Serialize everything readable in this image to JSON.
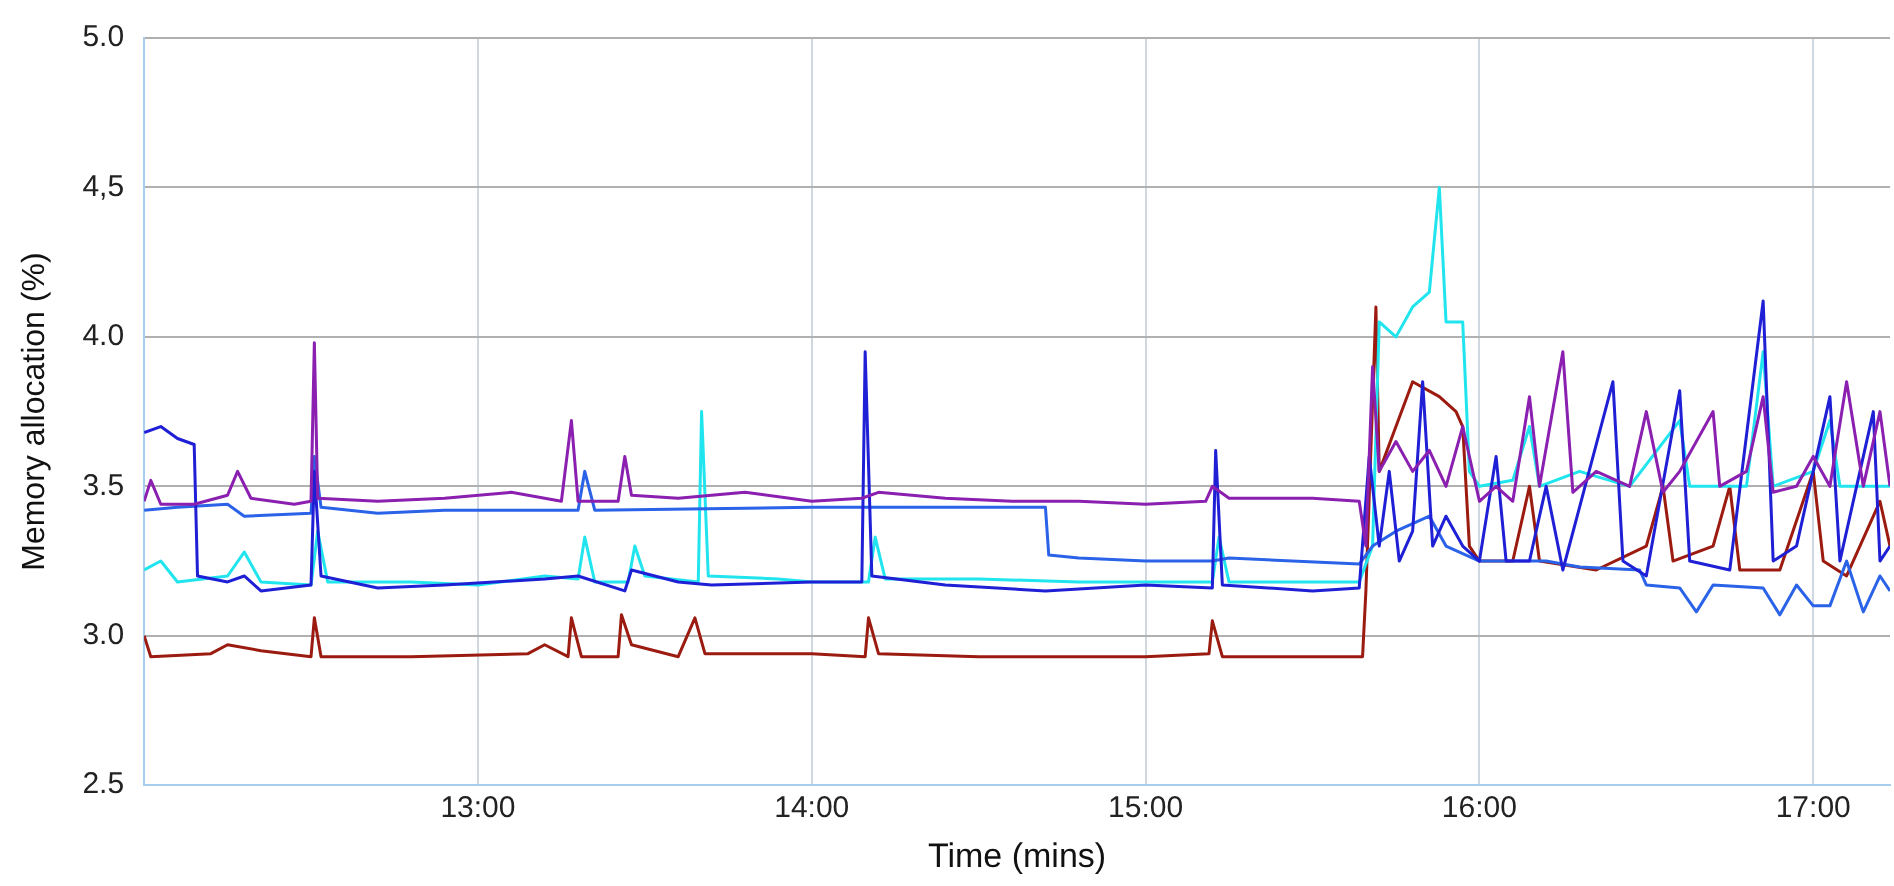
{
  "chart_data": {
    "type": "line",
    "xlabel": "Time (mins)",
    "ylabel": "Memory allocation (%)",
    "xlim": [
      12,
      17.23
    ],
    "xticks": [
      {
        "value": 13,
        "label": "13:00"
      },
      {
        "value": 14,
        "label": "14:00"
      },
      {
        "value": 15,
        "label": "15:00"
      },
      {
        "value": 16,
        "label": "16:00"
      },
      {
        "value": 17,
        "label": "17:00"
      }
    ],
    "ylim": [
      2.5,
      5
    ],
    "yticks": [
      2.5,
      {
        "value": 3,
        "label": "3.0"
      },
      3.5,
      {
        "value": 4,
        "label": "4.0"
      },
      {
        "value": 4.5,
        "label": "4,5"
      },
      {
        "value": 5,
        "label": "5.0"
      }
    ],
    "grid": true,
    "legend": false,
    "marker": "none",
    "line_style": "solid",
    "series": [
      {
        "color": "#8a1fb0",
        "x": [
          12.0,
          12.02,
          12.05,
          12.15,
          12.25,
          12.28,
          12.32,
          12.45,
          12.5,
          12.51,
          12.52,
          12.7,
          12.9,
          13.1,
          13.25,
          13.28,
          13.3,
          13.42,
          13.44,
          13.46,
          13.6,
          13.8,
          14.0,
          14.15,
          14.2,
          14.4,
          14.6,
          14.8,
          15.0,
          15.18,
          15.2,
          15.25,
          15.5,
          15.64,
          15.66,
          15.68,
          15.7,
          15.75,
          15.8,
          15.85,
          15.9,
          15.95,
          16.0,
          16.05,
          16.1,
          16.15,
          16.18,
          16.25,
          16.28,
          16.35,
          16.45,
          16.5,
          16.55,
          16.6,
          16.7,
          16.72,
          16.8,
          16.85,
          16.88,
          16.95,
          17.0,
          17.05,
          17.1,
          17.15,
          17.2,
          17.23
        ],
        "values": [
          3.45,
          3.52,
          3.44,
          3.44,
          3.47,
          3.55,
          3.46,
          3.44,
          3.45,
          3.98,
          3.46,
          3.45,
          3.46,
          3.48,
          3.45,
          3.72,
          3.45,
          3.45,
          3.6,
          3.47,
          3.46,
          3.48,
          3.45,
          3.46,
          3.48,
          3.46,
          3.45,
          3.45,
          3.44,
          3.45,
          3.5,
          3.46,
          3.46,
          3.45,
          3.3,
          3.9,
          3.55,
          3.65,
          3.55,
          3.62,
          3.5,
          3.7,
          3.45,
          3.5,
          3.45,
          3.8,
          3.5,
          3.95,
          3.48,
          3.55,
          3.5,
          3.75,
          3.48,
          3.55,
          3.75,
          3.5,
          3.55,
          3.8,
          3.48,
          3.5,
          3.6,
          3.5,
          3.85,
          3.5,
          3.75,
          3.5
        ]
      },
      {
        "color": "#1f1fd6",
        "x": [
          12.0,
          12.05,
          12.1,
          12.15,
          12.16,
          12.25,
          12.3,
          12.35,
          12.5,
          12.51,
          12.53,
          12.7,
          12.9,
          13.2,
          13.3,
          13.44,
          13.46,
          13.6,
          13.7,
          14.0,
          14.15,
          14.16,
          14.18,
          14.4,
          14.7,
          15.0,
          15.2,
          15.21,
          15.23,
          15.5,
          15.64,
          15.67,
          15.7,
          15.73,
          15.76,
          15.8,
          15.83,
          15.86,
          15.9,
          15.95,
          16.0,
          16.05,
          16.08,
          16.15,
          16.2,
          16.25,
          16.4,
          16.43,
          16.5,
          16.6,
          16.63,
          16.75,
          16.85,
          16.88,
          16.95,
          17.05,
          17.08,
          17.18,
          17.2,
          17.23
        ],
        "values": [
          3.68,
          3.7,
          3.66,
          3.64,
          3.2,
          3.18,
          3.2,
          3.15,
          3.17,
          3.55,
          3.2,
          3.16,
          3.17,
          3.19,
          3.2,
          3.15,
          3.22,
          3.18,
          3.17,
          3.18,
          3.18,
          3.95,
          3.2,
          3.17,
          3.15,
          3.17,
          3.16,
          3.62,
          3.17,
          3.15,
          3.16,
          3.6,
          3.3,
          3.55,
          3.25,
          3.35,
          3.85,
          3.3,
          3.4,
          3.3,
          3.25,
          3.6,
          3.25,
          3.25,
          3.5,
          3.22,
          3.85,
          3.25,
          3.2,
          3.82,
          3.25,
          3.22,
          4.12,
          3.25,
          3.3,
          3.8,
          3.25,
          3.75,
          3.25,
          3.3
        ]
      },
      {
        "color": "#2a62e8",
        "x": [
          12.0,
          12.1,
          12.25,
          12.3,
          12.5,
          12.51,
          12.53,
          12.7,
          12.9,
          13.3,
          13.32,
          13.35,
          14.0,
          14.2,
          14.7,
          14.71,
          14.8,
          15.0,
          15.2,
          15.25,
          15.64,
          15.68,
          15.75,
          15.85,
          15.9,
          16.0,
          16.2,
          16.3,
          16.48,
          16.5,
          16.6,
          16.65,
          16.7,
          16.85,
          16.9,
          16.95,
          17.0,
          17.05,
          17.1,
          17.15,
          17.2,
          17.23
        ],
        "values": [
          3.42,
          3.43,
          3.44,
          3.4,
          3.41,
          3.6,
          3.43,
          3.41,
          3.42,
          3.42,
          3.55,
          3.42,
          3.43,
          3.43,
          3.43,
          3.27,
          3.26,
          3.25,
          3.25,
          3.26,
          3.24,
          3.3,
          3.35,
          3.4,
          3.3,
          3.25,
          3.25,
          3.23,
          3.22,
          3.17,
          3.16,
          3.08,
          3.17,
          3.16,
          3.07,
          3.17,
          3.1,
          3.1,
          3.25,
          3.08,
          3.2,
          3.15
        ]
      },
      {
        "color": "#20e4ee",
        "x": [
          12.0,
          12.05,
          12.1,
          12.25,
          12.3,
          12.35,
          12.5,
          12.52,
          12.55,
          12.8,
          13.0,
          13.2,
          13.3,
          13.32,
          13.35,
          13.45,
          13.47,
          13.5,
          13.66,
          13.67,
          13.69,
          13.9,
          14.0,
          14.17,
          14.19,
          14.22,
          14.5,
          14.8,
          15.0,
          15.2,
          15.22,
          15.25,
          15.64,
          15.68,
          15.7,
          15.75,
          15.8,
          15.85,
          15.88,
          15.9,
          15.95,
          15.97,
          16.0,
          16.1,
          16.15,
          16.18,
          16.3,
          16.45,
          16.6,
          16.63,
          16.8,
          16.85,
          16.88,
          17.0,
          17.05,
          17.08,
          17.23
        ],
        "values": [
          3.22,
          3.25,
          3.18,
          3.2,
          3.28,
          3.18,
          3.17,
          3.35,
          3.18,
          3.18,
          3.17,
          3.2,
          3.19,
          3.33,
          3.18,
          3.18,
          3.3,
          3.2,
          3.18,
          3.75,
          3.2,
          3.19,
          3.18,
          3.18,
          3.33,
          3.19,
          3.19,
          3.18,
          3.18,
          3.18,
          3.33,
          3.18,
          3.18,
          3.3,
          4.05,
          4.0,
          4.1,
          4.15,
          4.5,
          4.05,
          4.05,
          3.55,
          3.5,
          3.52,
          3.7,
          3.5,
          3.55,
          3.5,
          3.72,
          3.5,
          3.5,
          3.95,
          3.5,
          3.55,
          3.72,
          3.5,
          3.5
        ]
      },
      {
        "color": "#9b1b10",
        "x": [
          12.0,
          12.02,
          12.2,
          12.25,
          12.35,
          12.5,
          12.51,
          12.53,
          12.8,
          13.15,
          13.2,
          13.27,
          13.28,
          13.31,
          13.42,
          13.43,
          13.46,
          13.6,
          13.65,
          13.68,
          14.0,
          14.16,
          14.17,
          14.2,
          14.5,
          15.0,
          15.19,
          15.2,
          15.23,
          15.65,
          15.66,
          15.69,
          15.7,
          15.75,
          15.8,
          15.88,
          15.93,
          15.95,
          15.97,
          16.0,
          16.1,
          16.15,
          16.18,
          16.35,
          16.5,
          16.55,
          16.58,
          16.7,
          16.75,
          16.78,
          16.9,
          17.0,
          17.03,
          17.1,
          17.2,
          17.23
        ],
        "values": [
          3.0,
          2.93,
          2.94,
          2.97,
          2.95,
          2.93,
          3.06,
          2.93,
          2.93,
          2.94,
          2.97,
          2.93,
          3.06,
          2.93,
          2.93,
          3.07,
          2.97,
          2.93,
          3.06,
          2.94,
          2.94,
          2.93,
          3.06,
          2.94,
          2.93,
          2.93,
          2.94,
          3.05,
          2.93,
          2.93,
          3.15,
          4.1,
          3.55,
          3.7,
          3.85,
          3.8,
          3.75,
          3.7,
          3.3,
          3.25,
          3.25,
          3.5,
          3.25,
          3.22,
          3.3,
          3.5,
          3.25,
          3.3,
          3.5,
          3.22,
          3.22,
          3.55,
          3.25,
          3.2,
          3.45,
          3.3
        ]
      }
    ]
  }
}
